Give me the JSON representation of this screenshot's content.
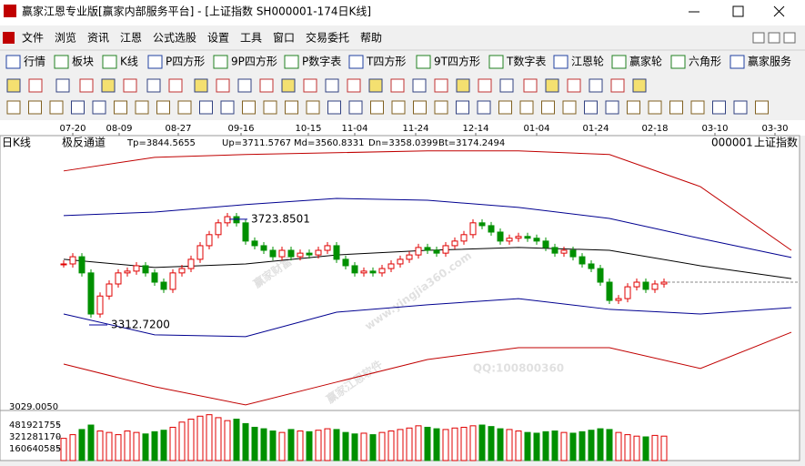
{
  "window": {
    "title": "赢家江恩专业版[赢家内部服务平台] - [上证指数  SH000001-174日K线]"
  },
  "menu": [
    "文件",
    "浏览",
    "资讯",
    "江恩",
    "公式选股",
    "设置",
    "工具",
    "窗口",
    "交易委托",
    "帮助"
  ],
  "toolbar": [
    "行情",
    "板块",
    "K线",
    "P四方形",
    "9P四方形",
    "P数字表",
    "T四方形",
    "9T四方形",
    "T数字表",
    "江恩轮",
    "赢家轮",
    "六角形",
    "赢家服务"
  ],
  "watermarks": [
    "赢家财富",
    "赢家江恩软件",
    "www.yingjia360.com",
    "QQ:100800360"
  ],
  "chart_data": {
    "type": "candlestick",
    "period": "日K线",
    "indicator": "极反通道",
    "stats": [
      "Tp=3844.5655",
      "Up=3711.5767",
      "Md=3560.8331",
      "Dn=3358.0399",
      "Bt=3174.2494"
    ],
    "symbol": "000001",
    "symbol_name": "上证指数",
    "x_labels": [
      "07-20",
      "08-09",
      "08-27",
      "09-16",
      "10-15",
      "11-04",
      "11-24",
      "12-14",
      "01-04",
      "01-24",
      "02-18",
      "03-10",
      "03-30"
    ],
    "ylim": [
      2983,
      4046
    ],
    "bottom_label": {
      "value": 3029.005,
      "label": "3029.0050"
    },
    "up_color": "#e00000",
    "down_color": "#009000",
    "closes": [
      3550,
      3578,
      3515,
      3355,
      3425,
      3472,
      3515,
      3522,
      3543,
      3515,
      3479,
      3451,
      3515,
      3532,
      3568,
      3621,
      3664,
      3710,
      3734,
      3710,
      3639,
      3621,
      3603,
      3578,
      3603,
      3578,
      3592,
      3585,
      3603,
      3621,
      3568,
      3543,
      3515,
      3522,
      3515,
      3532,
      3550,
      3568,
      3585,
      3614,
      3603,
      3592,
      3621,
      3639,
      3664,
      3710,
      3699,
      3674,
      3639,
      3650,
      3657,
      3650,
      3639,
      3614,
      3592,
      3603,
      3578,
      3550,
      3532,
      3479,
      3408,
      3415,
      3461,
      3479,
      3451,
      3472,
      3479
    ],
    "annotations": [
      {
        "value": 3723.8501,
        "label": "3723.8501"
      },
      {
        "value": 3312.72,
        "label": "3312.7200"
      }
    ],
    "bands": [
      {
        "color": "#c00000",
        "values": [
          3912,
          3965,
          3976,
          3983,
          3990,
          3990,
          3976,
          3851,
          3603
        ]
      },
      {
        "color": "#000090",
        "values": [
          3738,
          3752,
          3781,
          3805,
          3798,
          3770,
          3727,
          3649,
          3575
        ]
      },
      {
        "color": "#000000",
        "values": [
          3568,
          3536,
          3550,
          3585,
          3603,
          3614,
          3603,
          3543,
          3493
        ]
      },
      {
        "color": "#000090",
        "values": [
          3355,
          3274,
          3267,
          3362,
          3391,
          3415,
          3373,
          3355,
          3380
        ]
      },
      {
        "color": "#c00000",
        "values": [
          3160,
          3072,
          3001,
          3090,
          3178,
          3224,
          3224,
          3143,
          3284
        ]
      }
    ],
    "volume": {
      "ylim": [
        0,
        665000000
      ],
      "yticks": [
        481921755,
        321281170,
        160640585
      ],
      "values": [
        300000000,
        350000000,
        420000000,
        480000000,
        400000000,
        380000000,
        350000000,
        400000000,
        380000000,
        360000000,
        390000000,
        410000000,
        450000000,
        520000000,
        560000000,
        600000000,
        620000000,
        580000000,
        540000000,
        560000000,
        500000000,
        450000000,
        430000000,
        400000000,
        380000000,
        420000000,
        400000000,
        390000000,
        410000000,
        430000000,
        420000000,
        380000000,
        360000000,
        370000000,
        350000000,
        380000000,
        400000000,
        420000000,
        440000000,
        470000000,
        450000000,
        430000000,
        420000000,
        440000000,
        450000000,
        470000000,
        480000000,
        460000000,
        430000000,
        420000000,
        400000000,
        380000000,
        370000000,
        390000000,
        400000000,
        380000000,
        370000000,
        390000000,
        410000000,
        430000000,
        420000000,
        380000000,
        350000000,
        330000000,
        320000000,
        340000000,
        330000000
      ]
    }
  }
}
